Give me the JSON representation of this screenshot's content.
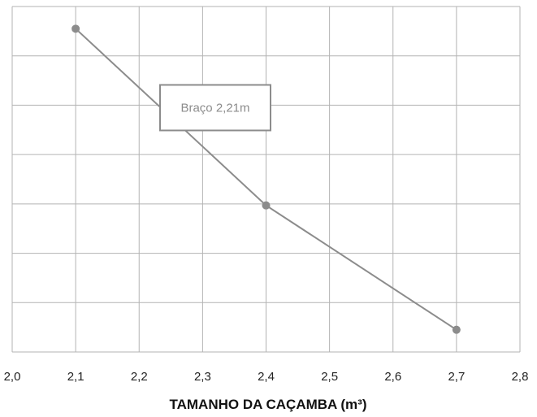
{
  "chart_data": {
    "type": "line",
    "xlabel": "TAMANHO DA CAÇAMBA (m³)",
    "ylabel": "",
    "xlim": [
      2.0,
      2.8
    ],
    "ylim": [
      0,
      7
    ],
    "x_ticks": [
      2.0,
      2.1,
      2.2,
      2.3,
      2.4,
      2.5,
      2.6,
      2.7,
      2.8
    ],
    "x_tick_labels": [
      "2,0",
      "2,1",
      "2,2",
      "2,3",
      "2,4",
      "2,5",
      "2,6",
      "2,7",
      "2,8"
    ],
    "y_gridlines": [
      0,
      1,
      2,
      3,
      4,
      5,
      6,
      7
    ],
    "grid": true,
    "series": [
      {
        "name": "Braço 2,21m",
        "x": [
          2.1,
          2.4,
          2.7
        ],
        "y": [
          6.55,
          2.97,
          0.45
        ]
      }
    ],
    "annotations": [
      {
        "text": "Braço 2,21m",
        "x": 2.32,
        "y": 4.95
      }
    ]
  },
  "colors": {
    "series": "#8c8c8c",
    "grid": "#b3b3b3",
    "annotation_border": "#8c8c8c",
    "annotation_text": "#8c8c8c"
  }
}
